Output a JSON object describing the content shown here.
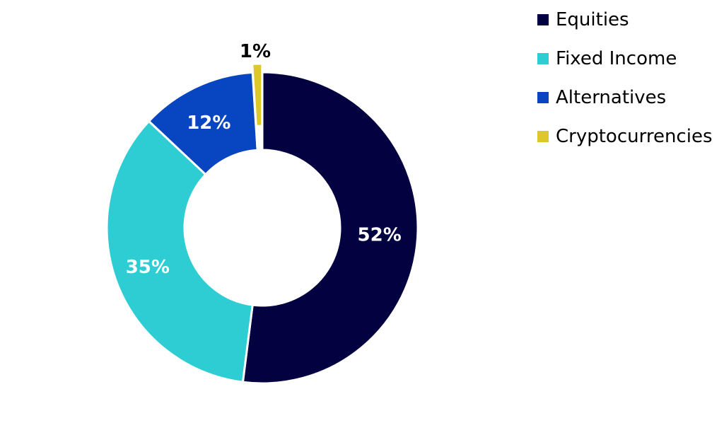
{
  "chart_data": {
    "type": "pie",
    "subtype": "donut",
    "title": "",
    "legend": "top-right",
    "slices": [
      {
        "label": "Equities",
        "value": 52,
        "display": "52%",
        "color": "#03013f",
        "label_color": "#ffffff"
      },
      {
        "label": "Fixed Income",
        "value": 35,
        "display": "35%",
        "color": "#2ecdd4",
        "label_color": "#ffffff"
      },
      {
        "label": "Alternatives",
        "value": 12,
        "display": "12%",
        "color": "#0745c1",
        "label_color": "#ffffff"
      },
      {
        "label": "Cryptocurrencies",
        "value": 1,
        "display": "1%",
        "color": "#dcc82a",
        "label_color": "#000000"
      }
    ]
  }
}
